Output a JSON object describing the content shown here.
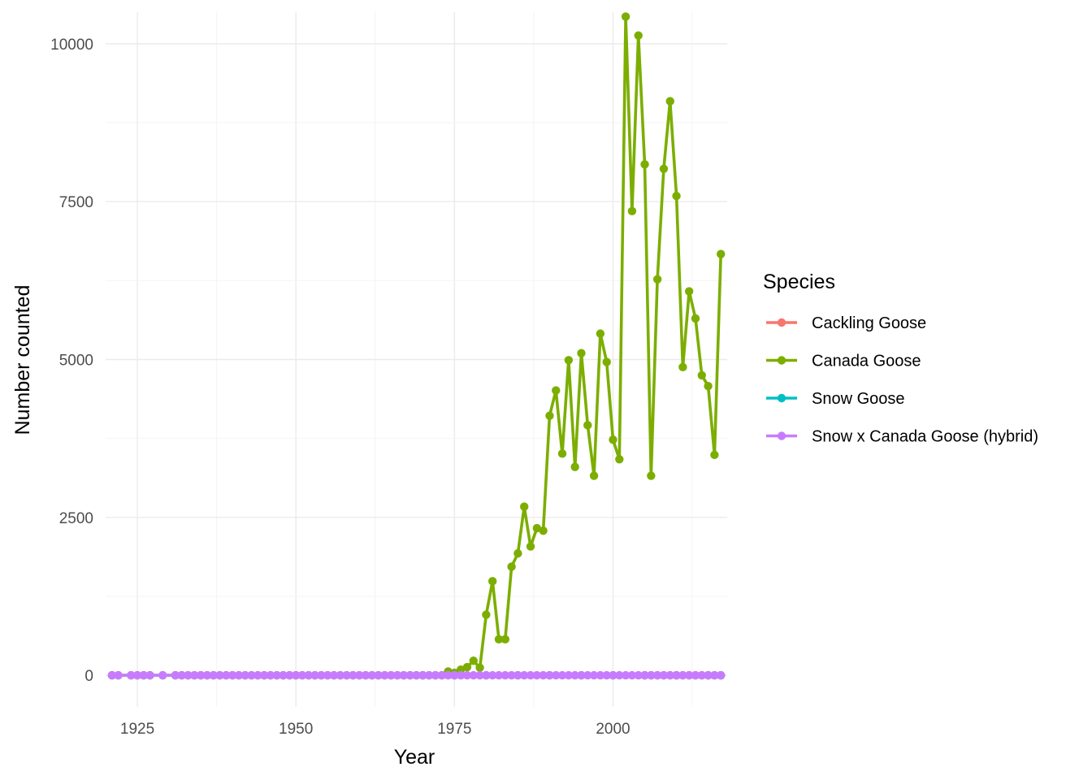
{
  "chart_data": {
    "type": "line",
    "xlabel": "Year",
    "ylabel": "Number counted",
    "xlim": [
      1920,
      2018
    ],
    "ylim": [
      -500,
      10500
    ],
    "x_ticks": [
      1925,
      1950,
      1975,
      2000
    ],
    "y_ticks": [
      0,
      2500,
      5000,
      7500,
      10000
    ],
    "grid": true,
    "legend": {
      "title": "Species",
      "placement": "right"
    },
    "series": [
      {
        "name": "Cackling Goose",
        "color": "#F8766D",
        "x": [
          2005,
          2006,
          2007,
          2008,
          2009,
          2010,
          2011,
          2012,
          2013,
          2014,
          2015,
          2016,
          2017
        ],
        "y": [
          0,
          0,
          0,
          0,
          0,
          0,
          0,
          0,
          0,
          0,
          0,
          0,
          0
        ]
      },
      {
        "name": "Canada Goose",
        "color": "#7CAE00",
        "x": [
          1921,
          1922,
          1924,
          1925,
          1926,
          1927,
          1929,
          1931,
          1932,
          1933,
          1934,
          1935,
          1936,
          1937,
          1938,
          1939,
          1940,
          1941,
          1942,
          1943,
          1944,
          1945,
          1946,
          1947,
          1948,
          1949,
          1950,
          1951,
          1952,
          1953,
          1954,
          1955,
          1956,
          1957,
          1958,
          1959,
          1960,
          1961,
          1962,
          1963,
          1964,
          1965,
          1966,
          1967,
          1968,
          1969,
          1970,
          1971,
          1972,
          1973,
          1974,
          1975,
          1976,
          1977,
          1978,
          1979,
          1980,
          1981,
          1982,
          1983,
          1984,
          1985,
          1986,
          1987,
          1988,
          1989,
          1990,
          1991,
          1992,
          1993,
          1994,
          1995,
          1996,
          1997,
          1998,
          1999,
          2000,
          2001,
          2002,
          2003,
          2004,
          2005,
          2006,
          2007,
          2008,
          2009,
          2010,
          2011,
          2012,
          2013,
          2014,
          2015,
          2016,
          2017
        ],
        "y": [
          0,
          0,
          0,
          0,
          0,
          0,
          0,
          0,
          0,
          0,
          0,
          0,
          0,
          0,
          0,
          0,
          0,
          0,
          0,
          0,
          0,
          0,
          0,
          0,
          0,
          0,
          0,
          0,
          0,
          0,
          0,
          0,
          0,
          0,
          0,
          0,
          0,
          0,
          0,
          0,
          0,
          0,
          0,
          0,
          0,
          0,
          0,
          0,
          0,
          0,
          60,
          40,
          90,
          130,
          230,
          120,
          960,
          1490,
          570,
          570,
          1720,
          1930,
          2670,
          2040,
          2330,
          2290,
          4110,
          4510,
          3510,
          4990,
          3300,
          5100,
          3960,
          3160,
          5410,
          4960,
          3730,
          3420,
          10430,
          7350,
          10130,
          8090,
          3160,
          6270,
          8020,
          9090,
          7590,
          4880,
          6080,
          5650,
          4750,
          4580,
          3490,
          6670
        ]
      },
      {
        "name": "Snow Goose",
        "color": "#00BFC4",
        "x": [
          1970,
          1975,
          1980,
          1985,
          1990,
          1995,
          2000,
          2005,
          2010,
          2015,
          2017
        ],
        "y": [
          0,
          0,
          0,
          0,
          0,
          0,
          0,
          0,
          0,
          0,
          0
        ]
      },
      {
        "name": "Snow x Canada Goose (hybrid)",
        "color": "#C77CFF",
        "x": [
          1921,
          1922,
          1924,
          1925,
          1926,
          1927,
          1929,
          1931,
          1932,
          1933,
          1934,
          1935,
          1936,
          1937,
          1938,
          1939,
          1940,
          1941,
          1942,
          1943,
          1944,
          1945,
          1946,
          1947,
          1948,
          1949,
          1950,
          1951,
          1952,
          1953,
          1954,
          1955,
          1956,
          1957,
          1958,
          1959,
          1960,
          1961,
          1962,
          1963,
          1964,
          1965,
          1966,
          1967,
          1968,
          1969,
          1970,
          1971,
          1972,
          1973,
          1974,
          1975,
          1976,
          1977,
          1978,
          1979,
          1980,
          1981,
          1982,
          1983,
          1984,
          1985,
          1986,
          1987,
          1988,
          1989,
          1990,
          1991,
          1992,
          1993,
          1994,
          1995,
          1996,
          1997,
          1998,
          1999,
          2000,
          2001,
          2002,
          2003,
          2004,
          2005,
          2006,
          2007,
          2008,
          2009,
          2010,
          2011,
          2012,
          2013,
          2014,
          2015,
          2016,
          2017
        ],
        "y": [
          0,
          0,
          0,
          0,
          0,
          0,
          0,
          0,
          0,
          0,
          0,
          0,
          0,
          0,
          0,
          0,
          0,
          0,
          0,
          0,
          0,
          0,
          0,
          0,
          0,
          0,
          0,
          0,
          0,
          0,
          0,
          0,
          0,
          0,
          0,
          0,
          0,
          0,
          0,
          0,
          0,
          0,
          0,
          0,
          0,
          0,
          0,
          0,
          0,
          0,
          0,
          0,
          0,
          0,
          0,
          0,
          0,
          0,
          0,
          0,
          0,
          0,
          0,
          0,
          0,
          0,
          0,
          0,
          0,
          0,
          0,
          0,
          0,
          0,
          0,
          0,
          0,
          0,
          0,
          0,
          0,
          0,
          0,
          0,
          0,
          0,
          0,
          0,
          0,
          0,
          0,
          0,
          0,
          0
        ]
      }
    ]
  }
}
